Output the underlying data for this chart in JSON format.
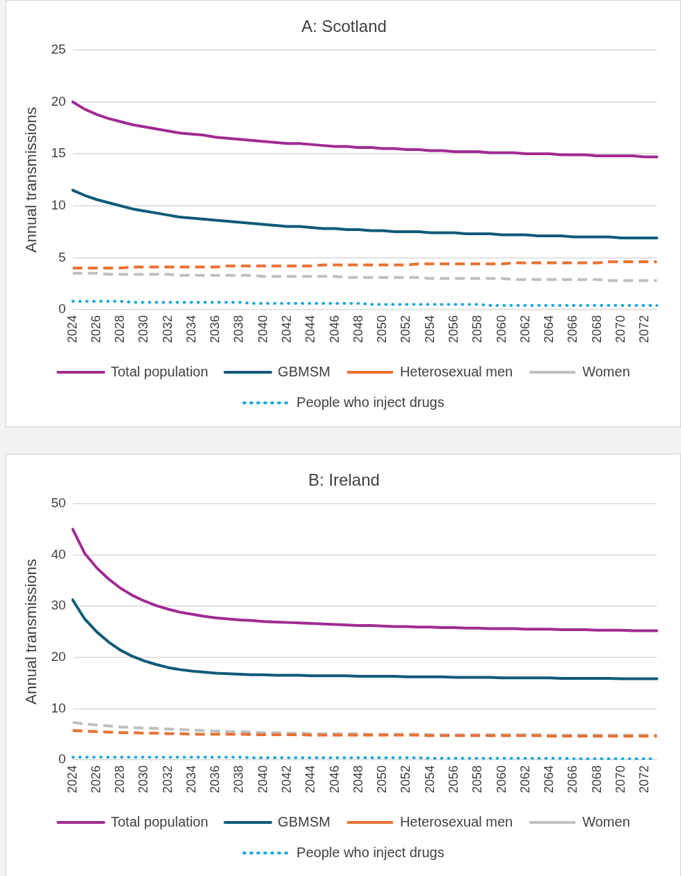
{
  "chart_data": [
    {
      "type": "line",
      "title": "A: Scotland",
      "ylabel": "Annual transmissions",
      "categories": [
        "2024",
        null,
        "2026",
        null,
        "2028",
        null,
        "2030",
        null,
        "2032",
        null,
        "2034",
        null,
        "2036",
        null,
        "2038",
        null,
        "2040",
        null,
        "2042",
        null,
        "2044",
        null,
        "2046",
        null,
        "2048",
        null,
        "2050",
        null,
        "2052",
        null,
        "2054",
        null,
        "2056",
        null,
        "2058",
        null,
        "2060",
        null,
        "2062",
        null,
        "2064",
        null,
        "2066",
        null,
        "2068",
        null,
        "2070",
        null,
        "2072",
        null
      ],
      "ylim": [
        0,
        25
      ],
      "yticks": [
        0,
        5,
        10,
        15,
        20,
        25
      ],
      "grid": "y",
      "legend": "bottom",
      "marker": "none",
      "series": [
        {
          "name": "Total population",
          "color": "#a02b93",
          "line_style": "solid",
          "values": [
            20.0,
            19.3,
            18.8,
            18.4,
            18.1,
            17.8,
            17.6,
            17.4,
            17.2,
            17.0,
            16.9,
            16.8,
            16.6,
            16.5,
            16.4,
            16.3,
            16.2,
            16.1,
            16.0,
            16.0,
            15.9,
            15.8,
            15.7,
            15.7,
            15.6,
            15.6,
            15.5,
            15.5,
            15.4,
            15.4,
            15.3,
            15.3,
            15.2,
            15.2,
            15.2,
            15.1,
            15.1,
            15.1,
            15.0,
            15.0,
            15.0,
            14.9,
            14.9,
            14.9,
            14.8,
            14.8,
            14.8,
            14.8,
            14.7,
            14.7
          ]
        },
        {
          "name": "GBMSM",
          "color": "#0f5b78",
          "line_style": "solid",
          "values": [
            11.5,
            11.0,
            10.6,
            10.3,
            10.0,
            9.7,
            9.5,
            9.3,
            9.1,
            8.9,
            8.8,
            8.7,
            8.6,
            8.5,
            8.4,
            8.3,
            8.2,
            8.1,
            8.0,
            8.0,
            7.9,
            7.8,
            7.8,
            7.7,
            7.7,
            7.6,
            7.6,
            7.5,
            7.5,
            7.5,
            7.4,
            7.4,
            7.4,
            7.3,
            7.3,
            7.3,
            7.2,
            7.2,
            7.2,
            7.1,
            7.1,
            7.1,
            7.0,
            7.0,
            7.0,
            7.0,
            6.9,
            6.9,
            6.9,
            6.9
          ]
        },
        {
          "name": "Heterosexual men",
          "color": "#e97132",
          "line_style": "dashed",
          "values": [
            4.0,
            4.0,
            4.0,
            4.0,
            4.0,
            4.1,
            4.1,
            4.1,
            4.1,
            4.1,
            4.1,
            4.1,
            4.1,
            4.2,
            4.2,
            4.2,
            4.2,
            4.2,
            4.2,
            4.2,
            4.2,
            4.3,
            4.3,
            4.3,
            4.3,
            4.3,
            4.3,
            4.3,
            4.3,
            4.4,
            4.4,
            4.4,
            4.4,
            4.4,
            4.4,
            4.4,
            4.4,
            4.5,
            4.5,
            4.5,
            4.5,
            4.5,
            4.5,
            4.5,
            4.5,
            4.6,
            4.6,
            4.6,
            4.6,
            4.6
          ]
        },
        {
          "name": "Women",
          "color": "#bfbfbf",
          "line_style": "dashed",
          "values": [
            3.5,
            3.5,
            3.5,
            3.4,
            3.4,
            3.4,
            3.4,
            3.4,
            3.4,
            3.3,
            3.3,
            3.3,
            3.3,
            3.3,
            3.3,
            3.3,
            3.2,
            3.2,
            3.2,
            3.2,
            3.2,
            3.2,
            3.2,
            3.1,
            3.1,
            3.1,
            3.1,
            3.1,
            3.1,
            3.1,
            3.0,
            3.0,
            3.0,
            3.0,
            3.0,
            3.0,
            3.0,
            2.9,
            2.9,
            2.9,
            2.9,
            2.9,
            2.9,
            2.9,
            2.9,
            2.8,
            2.8,
            2.8,
            2.8,
            2.8
          ]
        },
        {
          "name": "People who inject drugs",
          "color": "#1ea7dd",
          "line_style": "dotted",
          "values": [
            0.8,
            0.8,
            0.8,
            0.8,
            0.8,
            0.7,
            0.7,
            0.7,
            0.7,
            0.7,
            0.7,
            0.7,
            0.7,
            0.7,
            0.7,
            0.6,
            0.6,
            0.6,
            0.6,
            0.6,
            0.6,
            0.6,
            0.6,
            0.6,
            0.6,
            0.5,
            0.5,
            0.5,
            0.5,
            0.5,
            0.5,
            0.5,
            0.5,
            0.5,
            0.5,
            0.4,
            0.4,
            0.4,
            0.4,
            0.4,
            0.4,
            0.4,
            0.4,
            0.4,
            0.4,
            0.4,
            0.4,
            0.4,
            0.4,
            0.4
          ]
        }
      ]
    },
    {
      "type": "line",
      "title": "B: Ireland",
      "ylabel": "Annual transmissions",
      "categories": [
        "2024",
        null,
        "2026",
        null,
        "2028",
        null,
        "2030",
        null,
        "2032",
        null,
        "2034",
        null,
        "2036",
        null,
        "2038",
        null,
        "2040",
        null,
        "2042",
        null,
        "2044",
        null,
        "2046",
        null,
        "2048",
        null,
        "2050",
        null,
        "2052",
        null,
        "2054",
        null,
        "2056",
        null,
        "2058",
        null,
        "2060",
        null,
        "2062",
        null,
        "2064",
        null,
        "2066",
        null,
        "2068",
        null,
        "2070",
        null,
        "2072",
        null
      ],
      "ylim": [
        0,
        50
      ],
      "yticks": [
        0,
        10,
        20,
        30,
        40,
        50
      ],
      "grid": "y",
      "legend": "bottom",
      "marker": "none",
      "series": [
        {
          "name": "Total population",
          "color": "#a02b93",
          "line_style": "solid",
          "values": [
            45.0,
            40.3,
            37.5,
            35.3,
            33.5,
            32.1,
            31.0,
            30.1,
            29.4,
            28.8,
            28.4,
            28.0,
            27.7,
            27.5,
            27.3,
            27.2,
            27.0,
            26.9,
            26.8,
            26.7,
            26.6,
            26.5,
            26.4,
            26.3,
            26.2,
            26.2,
            26.1,
            26.0,
            26.0,
            25.9,
            25.9,
            25.8,
            25.8,
            25.7,
            25.7,
            25.6,
            25.6,
            25.6,
            25.5,
            25.5,
            25.5,
            25.4,
            25.4,
            25.4,
            25.3,
            25.3,
            25.3,
            25.2,
            25.2,
            25.2
          ]
        },
        {
          "name": "GBMSM",
          "color": "#0f5b78",
          "line_style": "solid",
          "values": [
            31.2,
            27.5,
            25.0,
            23.0,
            21.4,
            20.2,
            19.3,
            18.6,
            18.0,
            17.6,
            17.3,
            17.1,
            16.9,
            16.8,
            16.7,
            16.6,
            16.6,
            16.5,
            16.5,
            16.5,
            16.4,
            16.4,
            16.4,
            16.4,
            16.3,
            16.3,
            16.3,
            16.3,
            16.2,
            16.2,
            16.2,
            16.2,
            16.1,
            16.1,
            16.1,
            16.1,
            16.0,
            16.0,
            16.0,
            16.0,
            16.0,
            15.9,
            15.9,
            15.9,
            15.9,
            15.9,
            15.8,
            15.8,
            15.8,
            15.8
          ]
        },
        {
          "name": "Heterosexual men",
          "color": "#e97132",
          "line_style": "dashed",
          "values": [
            5.7,
            5.6,
            5.5,
            5.4,
            5.3,
            5.3,
            5.2,
            5.2,
            5.1,
            5.1,
            5.0,
            5.0,
            5.0,
            5.0,
            5.0,
            4.9,
            4.9,
            4.9,
            4.9,
            4.9,
            4.8,
            4.8,
            4.8,
            4.8,
            4.8,
            4.8,
            4.8,
            4.8,
            4.8,
            4.8,
            4.7,
            4.7,
            4.7,
            4.7,
            4.7,
            4.7,
            4.7,
            4.7,
            4.7,
            4.7,
            4.6,
            4.6,
            4.6,
            4.6,
            4.6,
            4.6,
            4.6,
            4.6,
            4.6,
            4.6
          ]
        },
        {
          "name": "Women",
          "color": "#bfbfbf",
          "line_style": "dashed",
          "values": [
            7.3,
            7.0,
            6.8,
            6.6,
            6.4,
            6.3,
            6.2,
            6.1,
            6.0,
            5.9,
            5.8,
            5.7,
            5.6,
            5.5,
            5.5,
            5.4,
            5.3,
            5.3,
            5.2,
            5.2,
            5.1,
            5.1,
            5.1,
            5.1,
            5.1,
            5.0,
            5.0,
            5.0,
            5.0,
            5.0,
            4.9,
            4.9,
            4.9,
            4.9,
            4.9,
            4.9,
            4.9,
            4.9,
            4.9,
            4.9,
            4.8,
            4.8,
            4.8,
            4.8,
            4.8,
            4.8,
            4.8,
            4.8,
            4.8,
            4.8
          ]
        },
        {
          "name": "People who inject drugs",
          "color": "#1ea7dd",
          "line_style": "dotted",
          "values": [
            0.5,
            0.5,
            0.5,
            0.5,
            0.5,
            0.5,
            0.5,
            0.5,
            0.5,
            0.5,
            0.5,
            0.5,
            0.5,
            0.5,
            0.5,
            0.4,
            0.4,
            0.4,
            0.4,
            0.4,
            0.4,
            0.4,
            0.4,
            0.4,
            0.4,
            0.4,
            0.4,
            0.4,
            0.4,
            0.4,
            0.3,
            0.3,
            0.3,
            0.3,
            0.3,
            0.3,
            0.3,
            0.3,
            0.3,
            0.3,
            0.3,
            0.3,
            0.2,
            0.2,
            0.2,
            0.2,
            0.2,
            0.2,
            0.2,
            0.2
          ]
        }
      ]
    }
  ]
}
